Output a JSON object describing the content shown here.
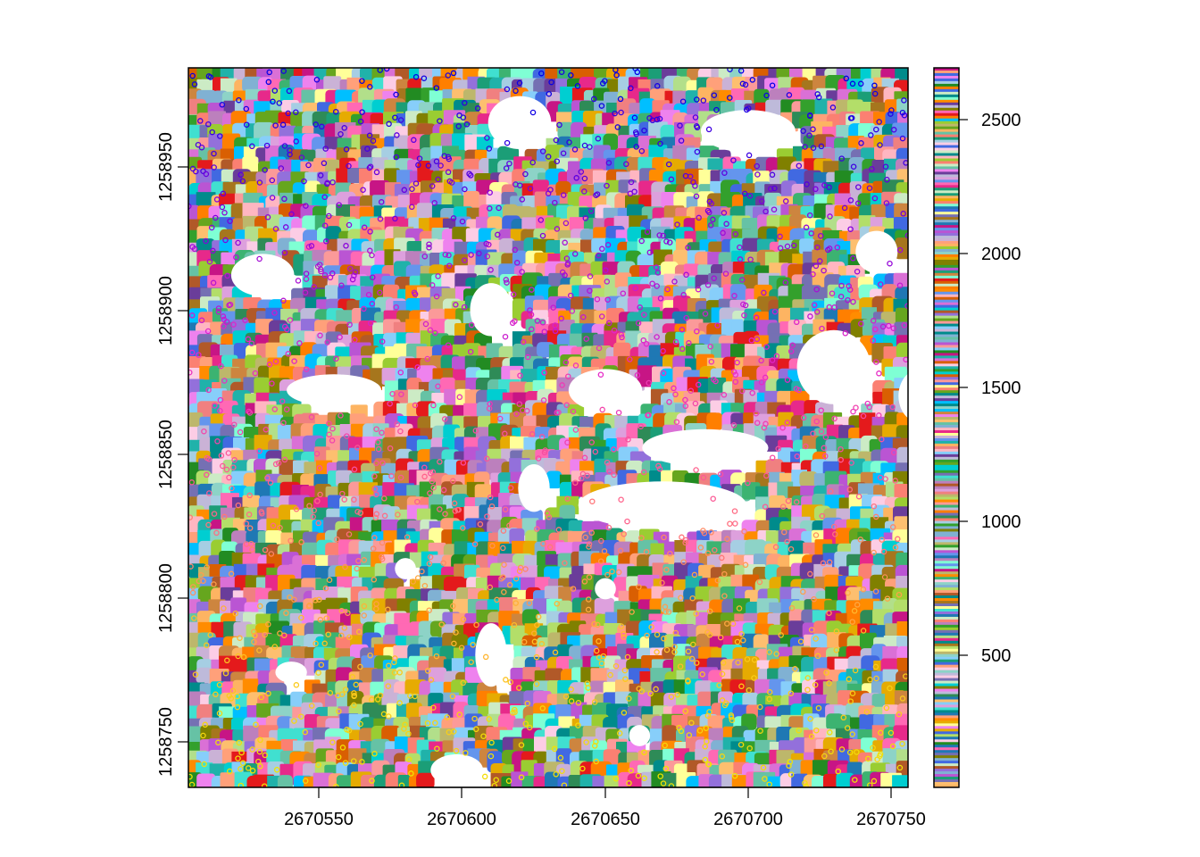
{
  "chart_data": {
    "type": "raster",
    "title": "",
    "xlabel": "",
    "ylabel": "",
    "xlim": [
      2670504,
      2670756
    ],
    "ylim": [
      1258734,
      1258984
    ],
    "x_ticks": [
      2670550,
      2670600,
      2670650,
      2670700,
      2670750
    ],
    "x_tick_labels": [
      "2670550",
      "2670600",
      "2670650",
      "2670700",
      "2670750"
    ],
    "y_ticks": [
      1258750,
      1258800,
      1258850,
      1258900,
      1258950
    ],
    "y_tick_labels": [
      "1258750",
      "1258800",
      "1258850",
      "1258900",
      "1258950"
    ],
    "grid": false,
    "legend": {
      "type": "colorbar",
      "placement": "right",
      "range": [
        1,
        2680
      ],
      "ticks": [
        500,
        1000,
        1500,
        2000,
        2500
      ],
      "tick_labels": [
        "500",
        "1000",
        "1500",
        "2000",
        "2500"
      ]
    },
    "layers": [
      {
        "name": "tree crown segments",
        "kind": "categorical raster",
        "value_range": [
          1,
          2680
        ]
      },
      {
        "name": "tree tops",
        "kind": "points",
        "marker": "open circle",
        "colored_by": "height (blue high → yellow low)"
      }
    ],
    "empty_areas": [
      {
        "cx": 2670530,
        "cy": 1258912,
        "rx": 12,
        "ry": 8
      },
      {
        "cx": 2670555,
        "cy": 1258872,
        "rx": 18,
        "ry": 6
      },
      {
        "cx": 2670610,
        "cy": 1258900,
        "rx": 8,
        "ry": 10
      },
      {
        "cx": 2670620,
        "cy": 1258965,
        "rx": 12,
        "ry": 10
      },
      {
        "cx": 2670700,
        "cy": 1258962,
        "rx": 18,
        "ry": 8
      },
      {
        "cx": 2670650,
        "cy": 1258872,
        "rx": 14,
        "ry": 8
      },
      {
        "cx": 2670685,
        "cy": 1258852,
        "rx": 24,
        "ry": 7
      },
      {
        "cx": 2670670,
        "cy": 1258832,
        "rx": 32,
        "ry": 9
      },
      {
        "cx": 2670730,
        "cy": 1258880,
        "rx": 14,
        "ry": 14
      },
      {
        "cx": 2670760,
        "cy": 1258870,
        "rx": 8,
        "ry": 10
      },
      {
        "cx": 2670625,
        "cy": 1258838,
        "rx": 6,
        "ry": 9
      },
      {
        "cx": 2670610,
        "cy": 1258780,
        "rx": 6,
        "ry": 12
      },
      {
        "cx": 2670598,
        "cy": 1258740,
        "rx": 10,
        "ry": 6
      },
      {
        "cx": 2670540,
        "cy": 1258774,
        "rx": 6,
        "ry": 4
      },
      {
        "cx": 2670650,
        "cy": 1258803,
        "rx": 4,
        "ry": 4
      },
      {
        "cx": 2670745,
        "cy": 1258920,
        "rx": 8,
        "ry": 8
      },
      {
        "cx": 2670580,
        "cy": 1258810,
        "rx": 4,
        "ry": 4
      },
      {
        "cx": 2670662,
        "cy": 1258752,
        "rx": 4,
        "ry": 4
      }
    ],
    "palette": [
      "#e41a1c",
      "#66c2a5",
      "#1f78b4",
      "#33a02c",
      "#fb9a99",
      "#6a3d9a",
      "#ff7f00",
      "#b15928",
      "#a6cee3",
      "#b2df8a",
      "#fdbf6f",
      "#cab2d6",
      "#ffff99",
      "#8dd3c7",
      "#bebada",
      "#fb8072",
      "#80b1d3",
      "#fdb462",
      "#b3de69",
      "#fccde5",
      "#bc80bd",
      "#ccebc5",
      "#1b9e77",
      "#d95f02",
      "#7570b3",
      "#e7298a",
      "#66a61e",
      "#e6ab02",
      "#a6761d",
      "#00ced1",
      "#ff69b4",
      "#2e8b57",
      "#808000",
      "#ba55d3",
      "#4169e1",
      "#87cefa",
      "#da70d6",
      "#20b2aa",
      "#f08080",
      "#9acd32",
      "#dda0dd",
      "#40e0d0",
      "#c71585",
      "#008b8b",
      "#ffb6c1",
      "#9370db",
      "#3cb371",
      "#bdb76b",
      "#6495ed",
      "#ff8c00",
      "#228b22",
      "#ee82ee",
      "#00bfff",
      "#cd853f",
      "#7fffd4",
      "#ffa07a"
    ]
  }
}
